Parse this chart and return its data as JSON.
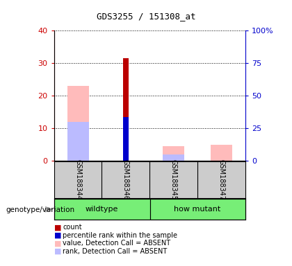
{
  "title": "GDS3255 / 151308_at",
  "samples": [
    "GSM188344",
    "GSM188346",
    "GSM188345",
    "GSM188347"
  ],
  "bar_positions": [
    1,
    2,
    3,
    4
  ],
  "count_values": [
    0,
    31.5,
    0,
    0
  ],
  "count_color": "#bb0000",
  "percentile_values": [
    0,
    13.5,
    0,
    0
  ],
  "percentile_color": "#0000cc",
  "absent_value_values": [
    23,
    0,
    4.5,
    5.0
  ],
  "absent_value_color": "#ffbbbb",
  "absent_rank_values": [
    12,
    0,
    2.0,
    0
  ],
  "absent_rank_color": "#bbbbff",
  "ylim_left": [
    0,
    40
  ],
  "ylim_right": [
    0,
    100
  ],
  "yticks_left": [
    0,
    10,
    20,
    30,
    40
  ],
  "yticks_right": [
    0,
    25,
    50,
    75,
    100
  ],
  "yticklabels_right": [
    "0",
    "25",
    "50",
    "75",
    "100%"
  ],
  "left_tick_color": "#cc0000",
  "right_tick_color": "#0000cc",
  "narrow_bar_width": 0.12,
  "wide_bar_width": 0.45,
  "legend_items": [
    {
      "label": "count",
      "color": "#bb0000"
    },
    {
      "label": "percentile rank within the sample",
      "color": "#0000cc"
    },
    {
      "label": "value, Detection Call = ABSENT",
      "color": "#ffbbbb"
    },
    {
      "label": "rank, Detection Call = ABSENT",
      "color": "#bbbbff"
    }
  ],
  "genotype_label": "genotype/variation",
  "background_color": "#ffffff",
  "gray_bg_color": "#cccccc",
  "green_color": "#77ee77"
}
